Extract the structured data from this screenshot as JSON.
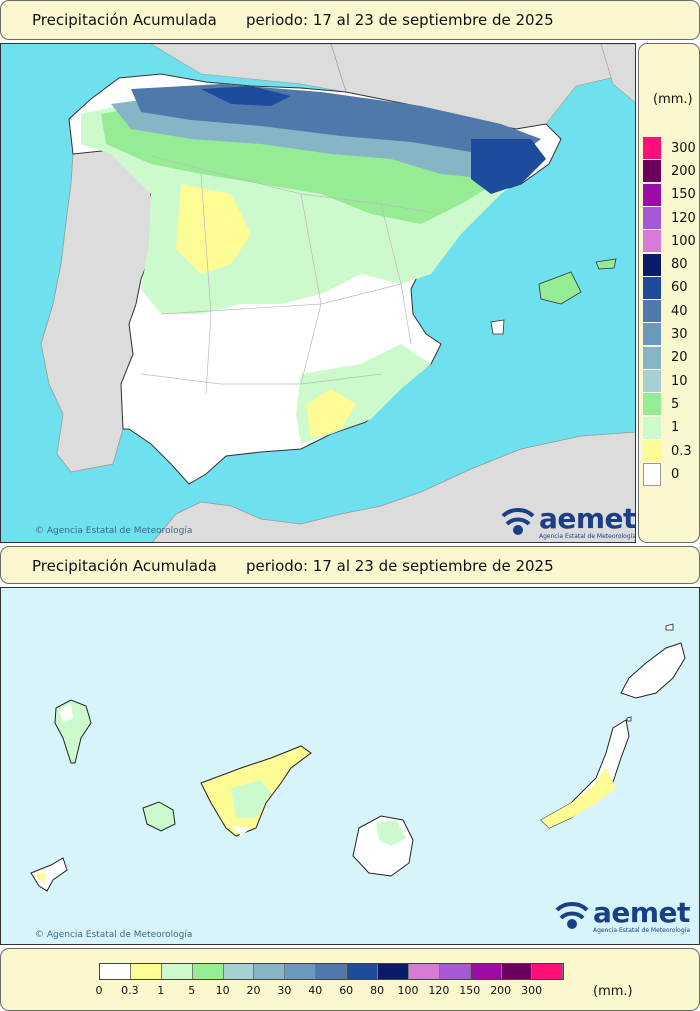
{
  "top_panel": {
    "title": "Precipitación Acumulada",
    "period": "periodo: 17 al 23 de septiembre de 2025"
  },
  "bottom_panel": {
    "title": "Precipitación Acumulada",
    "period": "periodo: 17 al 23 de septiembre de 2025"
  },
  "units": "(mm.)",
  "copyright_peninsula": "Agencia Estatal de Meteorología",
  "copyright_canarias": "Agencia Estatal de Meteorología",
  "logo": {
    "name": "aemet",
    "subtitle": "Agencia Estatal de Meteorología"
  },
  "legend": {
    "levels": [
      {
        "label": "0",
        "color": "#ffffff"
      },
      {
        "label": "0.3",
        "color": "#fdfb94"
      },
      {
        "label": "1",
        "color": "#cdfacd"
      },
      {
        "label": "5",
        "color": "#95ec95"
      },
      {
        "label": "10",
        "color": "#a7d1d0"
      },
      {
        "label": "20",
        "color": "#86b6c5"
      },
      {
        "label": "30",
        "color": "#6a99bd"
      },
      {
        "label": "40",
        "color": "#4e79aa"
      },
      {
        "label": "60",
        "color": "#1d4c9c"
      },
      {
        "label": "80",
        "color": "#0b1a6b"
      },
      {
        "label": "100",
        "color": "#d57bd5"
      },
      {
        "label": "120",
        "color": "#a559d6"
      },
      {
        "label": "150",
        "color": "#9b0ca6"
      },
      {
        "label": "200",
        "color": "#6b005f"
      },
      {
        "label": "300",
        "color": "#ff0f78"
      }
    ]
  },
  "map_colors": {
    "sea": "#6ee0ee",
    "sea_canarias": "#d7f4fb",
    "foreign_land": "#dcdcdc",
    "spain_land": "#ffffff"
  }
}
